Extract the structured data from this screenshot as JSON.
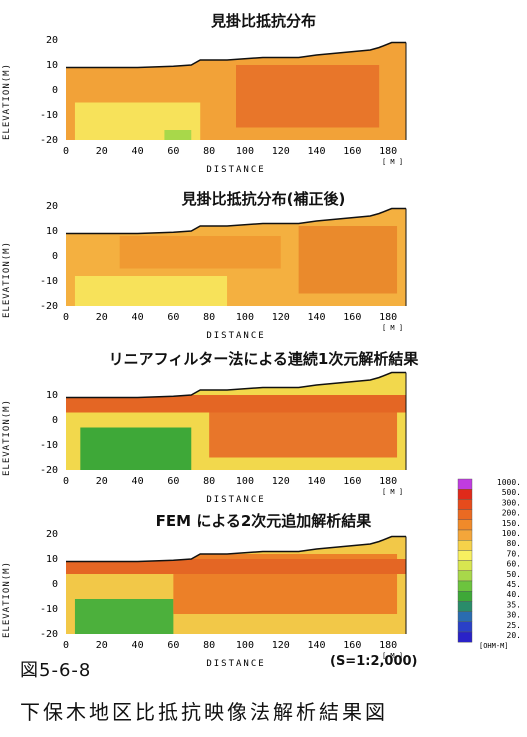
{
  "charts": [
    {
      "title": "見掛比抵抗分布",
      "xlabel": "DISTANCE",
      "ylabel": "ELEVATION(M)",
      "unit": "[ M ]"
    },
    {
      "title": "見掛比抵抗分布(補正後)",
      "xlabel": "DISTANCE",
      "ylabel": "ELEVATION(M)",
      "unit": "[ M ]"
    },
    {
      "title": "リニアフィルター法による連続1次元解析結果",
      "xlabel": "DISTANCE",
      "ylabel": "ELEVATION(M)",
      "unit": "[ M ]"
    },
    {
      "title": "FEM による2次元追加解析結果",
      "xlabel": "DISTANCE",
      "ylabel": "ELEVATION(M)",
      "unit": "[ M ]"
    }
  ],
  "legend": {
    "unit": "[OHM-M]",
    "entries": [
      {
        "label": "1000.",
        "color": "#c03ce0"
      },
      {
        "label": "500.",
        "color": "#e02a1a"
      },
      {
        "label": "300.",
        "color": "#e64b1c"
      },
      {
        "label": "200.",
        "color": "#ea6a22"
      },
      {
        "label": "150.",
        "color": "#f08a2a"
      },
      {
        "label": "100.",
        "color": "#f4a63a"
      },
      {
        "label": "80.",
        "color": "#f6d24a"
      },
      {
        "label": "70.",
        "color": "#f8f060"
      },
      {
        "label": "60.",
        "color": "#d8e650"
      },
      {
        "label": "50.",
        "color": "#a8d84a"
      },
      {
        "label": "45.",
        "color": "#6cc43e"
      },
      {
        "label": "40.",
        "color": "#3ea838"
      },
      {
        "label": "35.",
        "color": "#2a8c6a"
      },
      {
        "label": "30.",
        "color": "#2a6cb0"
      },
      {
        "label": "25.",
        "color": "#2a40c8"
      },
      {
        "label": "20.",
        "color": "#2a22c8"
      }
    ]
  },
  "figure_number": "図5-6-8",
  "figure_title": "下保木地区比抵抗映像法解析結果図",
  "scale": "(S=1:2,000)",
  "chart_data": [
    {
      "type": "heatmap",
      "title": "見掛比抵抗分布",
      "xlabel": "DISTANCE",
      "ylabel": "ELEVATION(M)",
      "xlim": [
        0,
        190
      ],
      "ylim": [
        -20,
        20
      ],
      "x_ticks": [
        "0",
        "20",
        "40",
        "60",
        "80",
        "100",
        "120",
        "140",
        "160",
        "180"
      ],
      "y_ticks": [
        "20",
        "10",
        "0",
        "-10",
        "-20"
      ]
    },
    {
      "type": "heatmap",
      "title": "見掛比抵抗分布(補正後)",
      "xlabel": "DISTANCE",
      "ylabel": "ELEVATION(M)",
      "xlim": [
        0,
        190
      ],
      "ylim": [
        -20,
        20
      ],
      "x_ticks": [
        "0",
        "20",
        "40",
        "60",
        "80",
        "100",
        "120",
        "140",
        "160",
        "180"
      ],
      "y_ticks": [
        "20",
        "10",
        "0",
        "-10",
        "-20"
      ]
    },
    {
      "type": "heatmap",
      "title": "リニアフィルター法による連続1次元解析結果",
      "xlabel": "DISTANCE",
      "ylabel": "ELEVATION(M)",
      "xlim": [
        0,
        190
      ],
      "ylim": [
        -20,
        20
      ],
      "x_ticks": [
        "0",
        "20",
        "40",
        "60",
        "80",
        "100",
        "120",
        "140",
        "160",
        "180"
      ],
      "y_ticks": [
        "10",
        "0",
        "-10",
        "-20"
      ]
    },
    {
      "type": "heatmap",
      "title": "FEM による2次元追加解析結果",
      "xlabel": "DISTANCE",
      "ylabel": "ELEVATION(M)",
      "xlim": [
        0,
        190
      ],
      "ylim": [
        -20,
        20
      ],
      "x_ticks": [
        "0",
        "20",
        "40",
        "60",
        "80",
        "100",
        "120",
        "140",
        "160",
        "180"
      ],
      "y_ticks": [
        "20",
        "10",
        "0",
        "-10",
        "-20"
      ]
    }
  ]
}
